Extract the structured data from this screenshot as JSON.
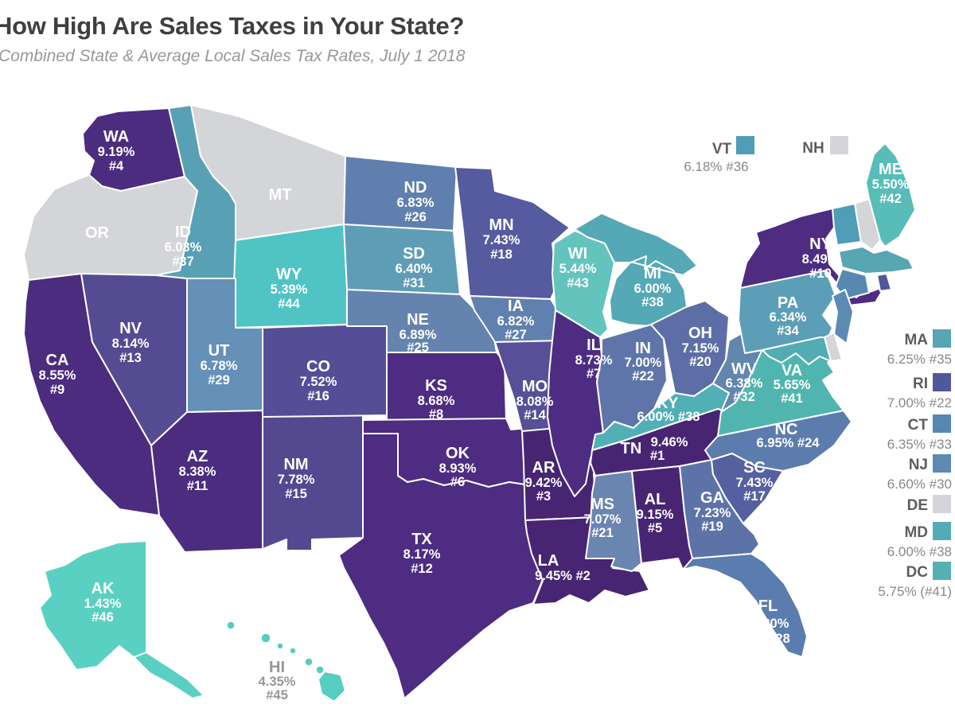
{
  "header": {
    "title": "How High Are Sales Taxes in Your State?",
    "subtitle": "Combined State & Average Local Sales Tax Rates, July 1 2018"
  },
  "map": {
    "background": "#ffffff",
    "state_border_color": "#ffffff",
    "no_tax_color": "#d4d5d8",
    "label_color": "#ffffff",
    "offmap_label_color": "#95979b",
    "callout_label_color": "#5c5d60",
    "callout_rate_color": "#87888c",
    "callouts_top": [
      "VT",
      "NH"
    ],
    "callouts_right": [
      "MA",
      "RI",
      "CT",
      "NJ",
      "DE",
      "MD",
      "DC"
    ],
    "states": [
      {
        "abbr": "WA",
        "rate": "9.19%",
        "rank": "#4",
        "color": "#4b2c7f"
      },
      {
        "abbr": "OR",
        "color": "#d4d5d8"
      },
      {
        "abbr": "CA",
        "rate": "8.55%",
        "rank": "#9",
        "color": "#4b2c7f"
      },
      {
        "abbr": "NV",
        "rate": "8.14%",
        "rank": "#13",
        "color": "#554b92"
      },
      {
        "abbr": "ID",
        "rate": "6.03%",
        "rank": "#37",
        "color": "#58a1b4"
      },
      {
        "abbr": "MT",
        "color": "#d4d5d8"
      },
      {
        "abbr": "WY",
        "rate": "5.39%",
        "rank": "#44",
        "color": "#50c3c4"
      },
      {
        "abbr": "UT",
        "rate": "6.78%",
        "rank": "#29",
        "color": "#6590b7"
      },
      {
        "abbr": "AZ",
        "rate": "8.38%",
        "rank": "#11",
        "color": "#4b2c7f"
      },
      {
        "abbr": "NM",
        "rate": "7.78%",
        "rank": "#15",
        "color": "#544891"
      },
      {
        "abbr": "CO",
        "rate": "7.52%",
        "rank": "#16",
        "color": "#554e96"
      },
      {
        "abbr": "ND",
        "rate": "6.83%",
        "rank": "#26",
        "color": "#5f80ae"
      },
      {
        "abbr": "SD",
        "rate": "6.40%",
        "rank": "#31",
        "color": "#5f9db7"
      },
      {
        "abbr": "NE",
        "rate": "6.89%",
        "rank": "#25",
        "color": "#6484af"
      },
      {
        "abbr": "KS",
        "rate": "8.68%",
        "rank": "#8",
        "color": "#4d2c82"
      },
      {
        "abbr": "OK",
        "rate": "8.93%",
        "rank": "#6",
        "color": "#4d2c82"
      },
      {
        "abbr": "TX",
        "rate": "8.17%",
        "rank": "#12",
        "color": "#4d2c82"
      },
      {
        "abbr": "MN",
        "rate": "7.43%",
        "rank": "#18",
        "color": "#555b9e"
      },
      {
        "abbr": "IA",
        "rate": "6.82%",
        "rank": "#27",
        "color": "#6080af"
      },
      {
        "abbr": "MO",
        "rate": "8.08%",
        "rank": "#14",
        "color": "#574f97"
      },
      {
        "abbr": "AR",
        "rate": "9.42%",
        "rank": "#3",
        "color": "#472573"
      },
      {
        "abbr": "LA",
        "rate": "9.45%",
        "rank": "#2",
        "color": "#472573"
      },
      {
        "abbr": "WI",
        "rate": "5.44%",
        "rank": "#43",
        "color": "#63c3bd"
      },
      {
        "abbr": "IL",
        "rate": "8.73%",
        "rank": "#7",
        "color": "#4d2c82"
      },
      {
        "abbr": "MI",
        "rate": "6.00%",
        "rank": "#38",
        "color": "#55a8b5"
      },
      {
        "abbr": "IN",
        "rate": "7.00%",
        "rank": "#22",
        "color": "#5f74a9"
      },
      {
        "abbr": "OH",
        "rate": "7.15%",
        "rank": "#20",
        "color": "#5d6ea6"
      },
      {
        "abbr": "KY",
        "rate": "6.00%",
        "rank": "#38",
        "color": "#51b0b5"
      },
      {
        "abbr": "TN",
        "rate": "9.46%",
        "rank": "#1",
        "color": "#472573"
      },
      {
        "abbr": "MS",
        "rate": "7.07%",
        "rank": "#21",
        "color": "#6a85b0"
      },
      {
        "abbr": "AL",
        "rate": "9.15%",
        "rank": "#5",
        "color": "#472573"
      },
      {
        "abbr": "GA",
        "rate": "7.23%",
        "rank": "#19",
        "color": "#5d73a8"
      },
      {
        "abbr": "FL",
        "rate": "6.80%",
        "rank": "#28",
        "color": "#5a7cae"
      },
      {
        "abbr": "SC",
        "rate": "7.43%",
        "rank": "#17",
        "color": "#5560a0"
      },
      {
        "abbr": "NC",
        "rate": "6.95%",
        "rank": "#24",
        "color": "#5c7cad"
      },
      {
        "abbr": "VA",
        "rate": "5.65%",
        "rank": "#41",
        "color": "#50b5ae"
      },
      {
        "abbr": "WV",
        "rate": "6.38%",
        "rank": "#32",
        "color": "#6286ae"
      },
      {
        "abbr": "PA",
        "rate": "6.34%",
        "rank": "#34",
        "color": "#5c9eb7"
      },
      {
        "abbr": "NY",
        "rate": "8.49%",
        "rank": "#10",
        "color": "#4d2c82"
      },
      {
        "abbr": "ME",
        "rate": "5.50%",
        "rank": "#42",
        "color": "#58bdb8"
      },
      {
        "abbr": "VT",
        "rate": "6.18%",
        "rank": "#36",
        "color": "#4f9db6"
      },
      {
        "abbr": "NH",
        "color": "#d4d5d8"
      },
      {
        "abbr": "MA",
        "rate": "6.25%",
        "rank": "#35",
        "color": "#58a5b4"
      },
      {
        "abbr": "RI",
        "rate": "7.00%",
        "rank": "#22",
        "color": "#50589c"
      },
      {
        "abbr": "CT",
        "rate": "6.35%",
        "rank": "#33",
        "color": "#5688b2"
      },
      {
        "abbr": "NJ",
        "rate": "6.60%",
        "rank": "#30",
        "color": "#5b8ab3"
      },
      {
        "abbr": "DE",
        "color": "#d4d5d8"
      },
      {
        "abbr": "MD",
        "rate": "6.00%",
        "rank": "#38",
        "color": "#53acb4"
      },
      {
        "abbr": "DC",
        "rate": "5.75%",
        "rank": "(#41)",
        "color": "#55b0b4"
      },
      {
        "abbr": "AK",
        "rate": "1.43%",
        "rank": "#46",
        "color": "#5ad0c2"
      },
      {
        "abbr": "HI",
        "rate": "4.35%",
        "rank": "#45",
        "color": "#55cdc0"
      }
    ]
  }
}
